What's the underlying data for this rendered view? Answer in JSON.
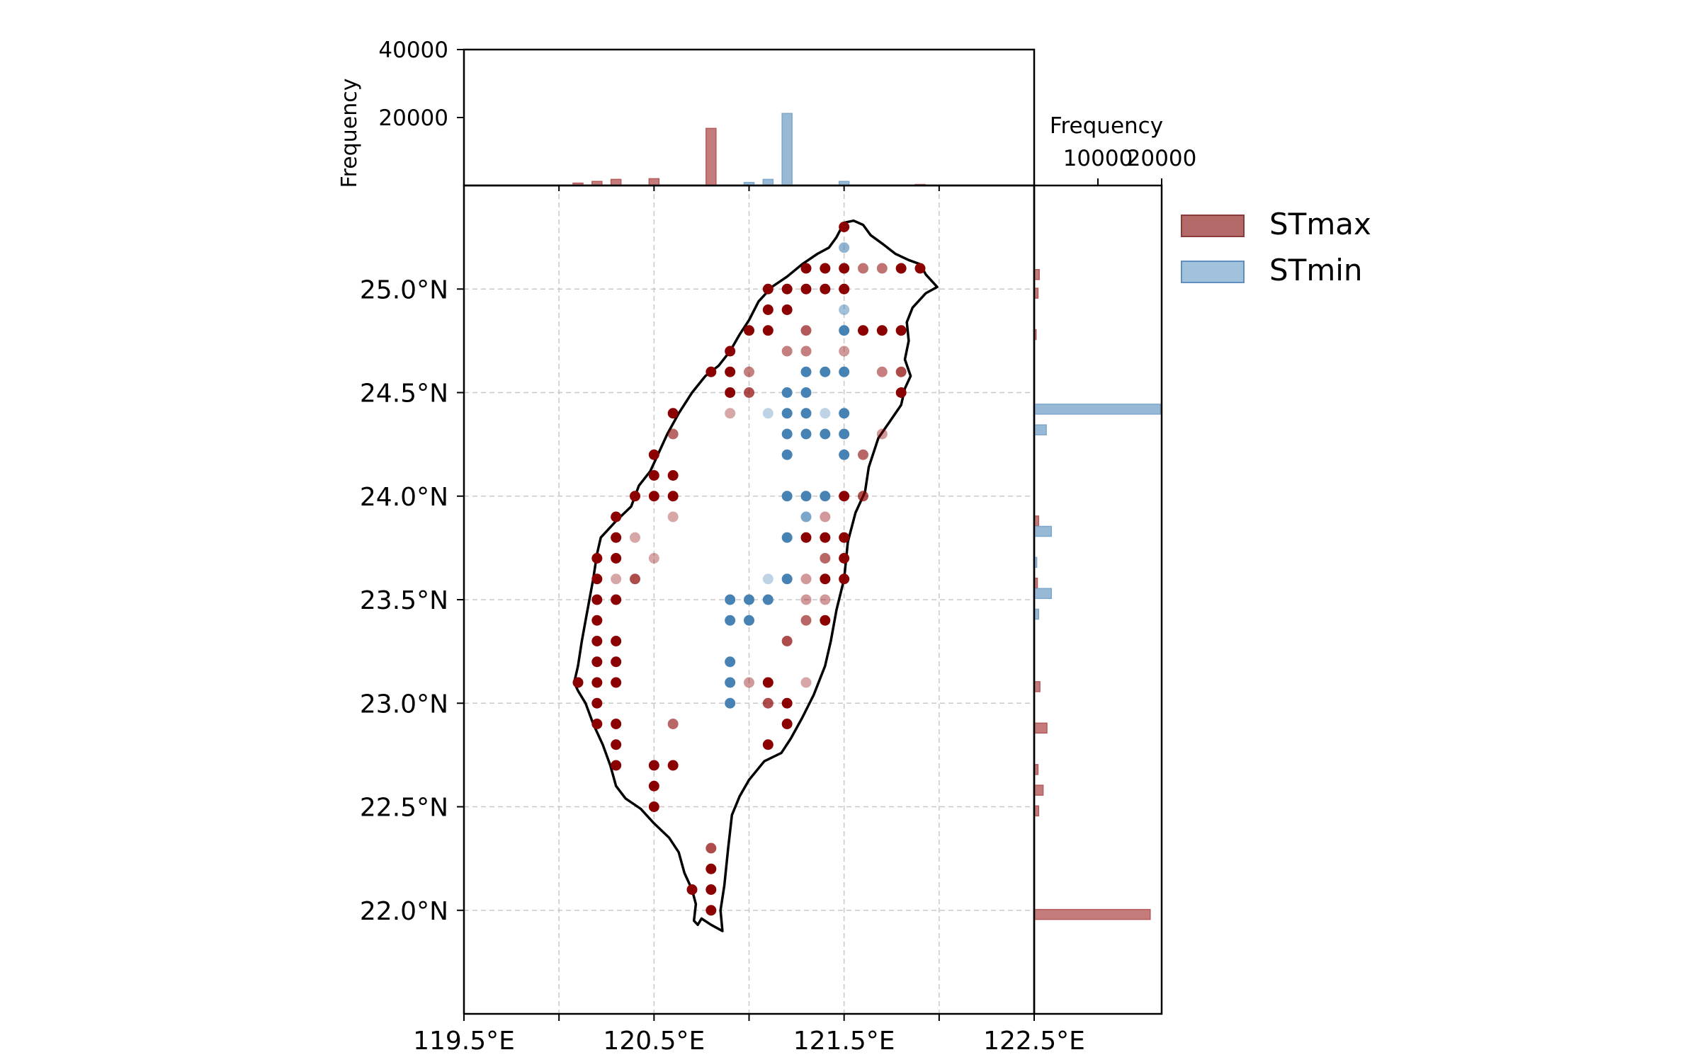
{
  "chart_data": [
    {
      "type": "scatter",
      "panel": "map",
      "xlabel": "",
      "ylabel": "",
      "xlim": [
        119.5,
        122.5
      ],
      "ylim": [
        21.5,
        25.5
      ],
      "x_ticks": [
        119.5,
        120.0,
        120.5,
        121.0,
        121.5,
        122.0,
        122.5
      ],
      "x_tick_labels": [
        "119.5°E",
        "",
        "120.5°E",
        "",
        "121.5°E",
        "",
        "122.5°E"
      ],
      "y_ticks": [
        22.0,
        22.5,
        23.0,
        23.5,
        24.0,
        24.5,
        25.0
      ],
      "y_tick_labels": [
        "22.0°N",
        "22.5°N",
        "23.0°N",
        "23.5°N",
        "24.0°N",
        "24.5°N",
        "25.0°N"
      ],
      "grid": true,
      "series": [
        {
          "name": "STmax",
          "color": "#8b0000",
          "points": [
            [
              121.5,
              25.3,
              1.0
            ],
            [
              121.3,
              25.1,
              1.0
            ],
            [
              121.4,
              25.1,
              1.0
            ],
            [
              121.5,
              25.1,
              1.0
            ],
            [
              121.6,
              25.1,
              0.55
            ],
            [
              121.7,
              25.1,
              0.55
            ],
            [
              121.8,
              25.1,
              1.0
            ],
            [
              121.9,
              25.1,
              1.0
            ],
            [
              121.1,
              25.0,
              1.0
            ],
            [
              121.2,
              25.0,
              1.0
            ],
            [
              121.3,
              25.0,
              1.0
            ],
            [
              121.4,
              25.0,
              1.0
            ],
            [
              121.5,
              25.0,
              1.0
            ],
            [
              121.1,
              24.9,
              1.0
            ],
            [
              121.2,
              24.9,
              1.0
            ],
            [
              121.0,
              24.8,
              1.0
            ],
            [
              121.1,
              24.8,
              1.0
            ],
            [
              121.3,
              24.8,
              0.65
            ],
            [
              121.6,
              24.8,
              1.0
            ],
            [
              121.7,
              24.8,
              1.0
            ],
            [
              121.8,
              24.8,
              1.0
            ],
            [
              120.9,
              24.7,
              1.0
            ],
            [
              121.2,
              24.7,
              0.5
            ],
            [
              121.3,
              24.7,
              0.5
            ],
            [
              121.5,
              24.7,
              0.4
            ],
            [
              120.8,
              24.6,
              1.0
            ],
            [
              120.9,
              24.6,
              1.0
            ],
            [
              121.0,
              24.6,
              0.5
            ],
            [
              121.7,
              24.6,
              0.5
            ],
            [
              121.8,
              24.6,
              0.7
            ],
            [
              120.9,
              24.5,
              1.0
            ],
            [
              121.0,
              24.5,
              0.7
            ],
            [
              121.8,
              24.5,
              1.0
            ],
            [
              120.6,
              24.4,
              1.0
            ],
            [
              120.9,
              24.4,
              0.35
            ],
            [
              120.6,
              24.3,
              0.6
            ],
            [
              121.7,
              24.3,
              0.4
            ],
            [
              120.5,
              24.2,
              1.0
            ],
            [
              121.6,
              24.2,
              0.6
            ],
            [
              120.5,
              24.1,
              1.0
            ],
            [
              120.6,
              24.1,
              1.0
            ],
            [
              120.4,
              24.0,
              1.0
            ],
            [
              120.5,
              24.0,
              1.0
            ],
            [
              120.6,
              24.0,
              1.0
            ],
            [
              121.5,
              24.0,
              1.0
            ],
            [
              121.6,
              24.0,
              0.7
            ],
            [
              120.3,
              23.9,
              1.0
            ],
            [
              120.6,
              23.9,
              0.35
            ],
            [
              121.4,
              23.9,
              0.4
            ],
            [
              120.3,
              23.8,
              1.0
            ],
            [
              120.4,
              23.8,
              0.35
            ],
            [
              121.3,
              23.8,
              1.0
            ],
            [
              121.4,
              23.8,
              1.0
            ],
            [
              121.5,
              23.8,
              1.0
            ],
            [
              120.2,
              23.7,
              1.0
            ],
            [
              120.3,
              23.7,
              1.0
            ],
            [
              120.5,
              23.7,
              0.35
            ],
            [
              121.4,
              23.7,
              0.6
            ],
            [
              121.5,
              23.7,
              1.0
            ],
            [
              120.2,
              23.6,
              1.0
            ],
            [
              120.3,
              23.6,
              0.35
            ],
            [
              120.4,
              23.6,
              0.7
            ],
            [
              121.3,
              23.6,
              0.4
            ],
            [
              121.4,
              23.6,
              1.0
            ],
            [
              121.5,
              23.6,
              1.0
            ],
            [
              120.2,
              23.5,
              1.0
            ],
            [
              120.3,
              23.5,
              1.0
            ],
            [
              121.3,
              23.5,
              0.4
            ],
            [
              121.4,
              23.5,
              0.4
            ],
            [
              120.2,
              23.4,
              1.0
            ],
            [
              121.3,
              23.4,
              0.6
            ],
            [
              121.4,
              23.4,
              1.0
            ],
            [
              120.2,
              23.3,
              1.0
            ],
            [
              120.3,
              23.3,
              1.0
            ],
            [
              121.2,
              23.3,
              0.7
            ],
            [
              120.2,
              23.2,
              1.0
            ],
            [
              120.3,
              23.2,
              1.0
            ],
            [
              120.1,
              23.1,
              1.0
            ],
            [
              120.2,
              23.1,
              1.0
            ],
            [
              120.3,
              23.1,
              1.0
            ],
            [
              121.0,
              23.1,
              0.4
            ],
            [
              121.1,
              23.1,
              1.0
            ],
            [
              121.3,
              23.1,
              0.35
            ],
            [
              120.2,
              23.0,
              1.0
            ],
            [
              121.1,
              23.0,
              0.7
            ],
            [
              121.2,
              23.0,
              1.0
            ],
            [
              120.2,
              22.9,
              1.0
            ],
            [
              120.3,
              22.9,
              1.0
            ],
            [
              120.6,
              22.9,
              0.6
            ],
            [
              121.2,
              22.9,
              1.0
            ],
            [
              120.3,
              22.8,
              1.0
            ],
            [
              121.1,
              22.8,
              1.0
            ],
            [
              120.3,
              22.7,
              1.0
            ],
            [
              120.5,
              22.7,
              1.0
            ],
            [
              120.6,
              22.7,
              1.0
            ],
            [
              120.5,
              22.6,
              1.0
            ],
            [
              120.5,
              22.5,
              1.0
            ],
            [
              120.8,
              22.3,
              0.7
            ],
            [
              120.8,
              22.2,
              1.0
            ],
            [
              120.7,
              22.1,
              1.0
            ],
            [
              120.8,
              22.1,
              1.0
            ],
            [
              120.8,
              22.0,
              1.0
            ]
          ]
        },
        {
          "name": "STmin",
          "color": "#4682b4",
          "points": [
            [
              121.5,
              25.2,
              0.6
            ],
            [
              121.5,
              24.9,
              0.5
            ],
            [
              121.5,
              24.8,
              1.0
            ],
            [
              121.2,
              24.5,
              1.0
            ],
            [
              121.3,
              24.5,
              1.0
            ],
            [
              121.3,
              24.6,
              1.0
            ],
            [
              121.4,
              24.6,
              1.0
            ],
            [
              121.5,
              24.6,
              1.0
            ],
            [
              121.1,
              24.4,
              0.35
            ],
            [
              121.2,
              24.4,
              1.0
            ],
            [
              121.3,
              24.4,
              1.0
            ],
            [
              121.4,
              24.4,
              0.35
            ],
            [
              121.5,
              24.4,
              1.0
            ],
            [
              121.2,
              24.3,
              1.0
            ],
            [
              121.3,
              24.3,
              1.0
            ],
            [
              121.4,
              24.3,
              1.0
            ],
            [
              121.5,
              24.3,
              1.0
            ],
            [
              121.2,
              24.2,
              1.0
            ],
            [
              121.5,
              24.2,
              1.0
            ],
            [
              121.2,
              24.0,
              1.0
            ],
            [
              121.3,
              24.0,
              1.0
            ],
            [
              121.4,
              24.0,
              1.0
            ],
            [
              121.3,
              23.9,
              0.7
            ],
            [
              121.2,
              23.8,
              1.0
            ],
            [
              121.1,
              23.6,
              0.35
            ],
            [
              121.2,
              23.6,
              1.0
            ],
            [
              120.9,
              23.5,
              1.0
            ],
            [
              121.0,
              23.5,
              1.0
            ],
            [
              121.1,
              23.5,
              1.0
            ],
            [
              120.9,
              23.4,
              1.0
            ],
            [
              121.0,
              23.4,
              1.0
            ],
            [
              120.9,
              23.2,
              1.0
            ],
            [
              120.9,
              23.1,
              1.0
            ],
            [
              120.9,
              23.0,
              1.0
            ]
          ]
        }
      ]
    },
    {
      "type": "bar",
      "panel": "top-histogram",
      "ylabel": "Frequency",
      "xlim": [
        119.5,
        122.5
      ],
      "ylim": [
        0,
        40000
      ],
      "y_ticks": [
        20000,
        40000
      ],
      "y_tick_labels": [
        "20000",
        "40000"
      ],
      "series": [
        {
          "name": "STmax",
          "color": "#b55a5a",
          "bins": [
            [
              120.1,
              700
            ],
            [
              120.2,
              1200
            ],
            [
              120.3,
              1800
            ],
            [
              120.5,
              2000
            ],
            [
              120.8,
              16800
            ],
            [
              121.9,
              300
            ]
          ]
        },
        {
          "name": "STmin",
          "color": "#7ea7cc",
          "bins": [
            [
              121.0,
              900
            ],
            [
              121.1,
              1800
            ],
            [
              121.2,
              21200
            ],
            [
              121.5,
              1200
            ]
          ]
        }
      ]
    },
    {
      "type": "bar",
      "panel": "right-histogram",
      "orientation": "horizontal",
      "xlabel": "Frequency",
      "xlim": [
        0,
        20000
      ],
      "x_ticks": [
        10000,
        20000
      ],
      "x_tick_labels": [
        "10000",
        "20000"
      ],
      "series": [
        {
          "name": "STmax",
          "color": "#b55a5a",
          "bins": [
            [
              25.07,
              800
            ],
            [
              24.98,
              600
            ],
            [
              24.78,
              300
            ],
            [
              23.88,
              700
            ],
            [
              23.58,
              500
            ],
            [
              23.08,
              900
            ],
            [
              22.88,
              2000
            ],
            [
              22.68,
              600
            ],
            [
              22.58,
              1400
            ],
            [
              22.48,
              700
            ],
            [
              21.98,
              18200
            ]
          ]
        },
        {
          "name": "STmin",
          "color": "#7ea7cc",
          "bins": [
            [
              24.42,
              19800
            ],
            [
              24.32,
              1900
            ],
            [
              23.83,
              2700
            ],
            [
              23.53,
              2700
            ],
            [
              23.43,
              700
            ],
            [
              23.68,
              400
            ]
          ]
        }
      ]
    }
  ],
  "legend": {
    "placement": "right",
    "items": [
      {
        "label": "STmax",
        "color": "#b56a6a"
      },
      {
        "label": "STmin",
        "color": "#a2c1dc"
      }
    ]
  }
}
